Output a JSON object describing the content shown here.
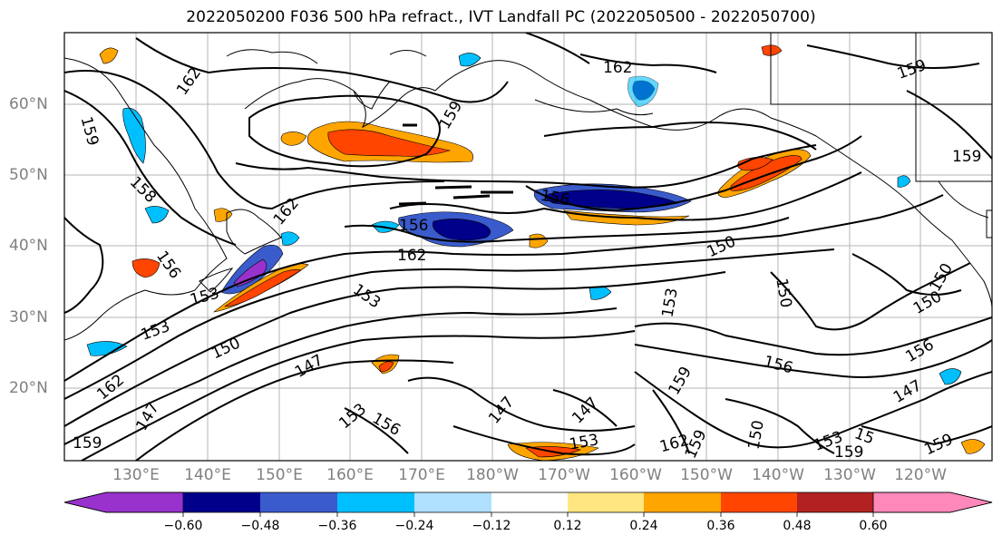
{
  "title": "2022050200 F036 500 hPa refract., IVT Landfall PC (2022050500 - 2022050700)",
  "lat_labels": [
    "60°N",
    "50°N",
    "40°N",
    "30°N",
    "20°N"
  ],
  "lon_labels": [
    "130°E",
    "140°E",
    "150°E",
    "160°E",
    "170°E",
    "180°W",
    "170°W",
    "160°W",
    "150°W",
    "140°W",
    "130°W",
    "120°W"
  ],
  "contour_labels": [
    "162",
    "162",
    "159",
    "159",
    "159",
    "159",
    "158",
    "162",
    "156",
    "156",
    "162",
    "156",
    "153",
    "153",
    "153",
    "150",
    "150",
    "153",
    "150",
    "147",
    "156",
    "150",
    "156",
    "147",
    "162",
    "147",
    "147",
    "147",
    "153",
    "156",
    "153",
    "159",
    "162",
    "159",
    "150",
    "159",
    "153",
    "15",
    "159",
    "159",
    "150"
  ],
  "colorbar": {
    "ticks": [
      "−0.60",
      "−0.48",
      "−0.36",
      "−0.24",
      "−0.12",
      "0.12",
      "0.24",
      "0.36",
      "0.48",
      "0.60"
    ],
    "colors": [
      "#9932cc",
      "#00008b",
      "#3a5bcc",
      "#00bfff",
      "#b0e0ff",
      "#ffffff",
      "#ffe680",
      "#ffa500",
      "#ff4500",
      "#b22222",
      "#ff88bb"
    ]
  }
}
